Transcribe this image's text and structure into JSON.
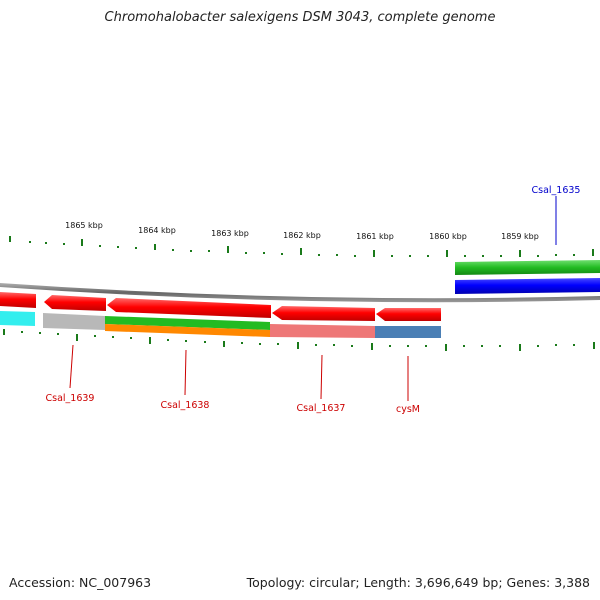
{
  "title": "Chromohalobacter salexigens DSM 3043, complete genome",
  "footer": {
    "accession": "Accession: NC_007963",
    "summary": "Topology: circular; Length: 3,696,649 bp; Genes: 3,388"
  },
  "scale_labels": [
    "1865 kbp",
    "1864 kbp",
    "1863 kbp",
    "1862 kbp",
    "1861 kbp",
    "1860 kbp",
    "1859 kbp"
  ],
  "gene_labels": [
    {
      "name": "Csal_1635",
      "color": "#0000cc"
    },
    {
      "name": "Csal_1639",
      "color": "#cc0000"
    },
    {
      "name": "Csal_1638",
      "color": "#cc0000"
    },
    {
      "name": "Csal_1637",
      "color": "#cc0000"
    },
    {
      "name": "cysM",
      "color": "#cc0000"
    }
  ],
  "colors": {
    "forward_cds": "#ff0000",
    "reverse_cds": "#0000ff",
    "tick": "#1a7a1a",
    "backbone": "#7a7a7a"
  }
}
